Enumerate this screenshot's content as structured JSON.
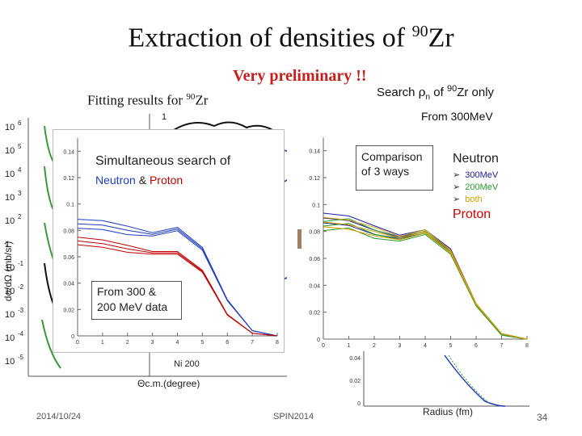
{
  "slide": {
    "title_main": "Extraction of densities of ",
    "title_sup": "90",
    "title_tail": "Zr",
    "preliminary": "Very preliminary !!",
    "fitting_prefix": "Fitting results for ",
    "fitting_sup": "90",
    "fitting_tail": "Zr",
    "search_prefix": "Search ",
    "search_rho": "ρ",
    "search_sub": "n",
    "search_mid": " of ",
    "search_sup": "90",
    "search_tail": "Zr only",
    "from300": "From 300MeV",
    "box_simultaneous_line1": "Simultaneous search of",
    "box_neutron": "Neutron",
    "box_amp": " & ",
    "box_proton": "Proton",
    "box_comparison": "Comparison of 3 ways",
    "box_from_data": "From 300 & 200 MeV data",
    "legend_neutron": "Neutron",
    "legend_items": [
      "300MeV",
      "200MeV",
      "both"
    ],
    "legend_proton": "Proton",
    "radius_label": "Radius (fm)",
    "date": "2014/10/24",
    "conference": "SPIN2014",
    "page_number": "34"
  },
  "axes": {
    "xsec_ylabel": "dσ/dΩ (mb/sr)",
    "xsec_xlabel": "Θc.m.(degree)",
    "density_yticks": [
      "0.14",
      "0.12",
      "0.1",
      "0.08",
      "0.06",
      "0.04",
      "0.02",
      "0"
    ],
    "density_xticks": [
      "0",
      "1",
      "2",
      "3",
      "4",
      "5",
      "6",
      "7",
      "8"
    ],
    "log_ticks": [
      "10",
      "10",
      "10",
      "10",
      "10",
      "1",
      "10",
      "10",
      "10",
      "10",
      "10"
    ],
    "log_exps": [
      "6",
      "5",
      "4",
      "3",
      "2",
      "",
      "-1",
      "-2",
      "-3",
      "-4",
      "-5"
    ],
    "ni_label": "Ni 200",
    "inset_yticks": [
      "0.04",
      "0.02",
      "0"
    ],
    "top_tick": "1"
  },
  "colors": {
    "title": "#111111",
    "preliminary": "#c81e1e",
    "neutron_blue": "#1f3fbf",
    "proton_red": "#c00000",
    "c300": "#1a1aa0",
    "c200": "#2a9a2a",
    "cboth": "#d4a000",
    "fit_green": "#3a9a3a"
  },
  "chart_data": [
    {
      "type": "line",
      "title": "",
      "xlabel": "",
      "ylabel": "",
      "series": [
        {
          "name": "Neutron",
          "x": [
            0,
            1,
            2,
            3,
            4,
            5,
            6,
            7,
            8
          ],
          "values": [
            0.085,
            0.084,
            0.08,
            0.077,
            0.081,
            0.066,
            0.027,
            0.004,
            0.0
          ]
        },
        {
          "name": "Proton",
          "x": [
            0,
            1,
            2,
            3,
            4,
            5,
            6,
            7,
            8
          ],
          "values": [
            0.072,
            0.07,
            0.066,
            0.063,
            0.063,
            0.049,
            0.016,
            0.002,
            0.0
          ]
        }
      ],
      "xlim": [
        0,
        8
      ],
      "ylim": [
        0,
        0.15
      ]
    },
    {
      "type": "line",
      "title": "",
      "xlabel": "Radius (fm)",
      "ylabel": "",
      "series": [
        {
          "name": "300MeV",
          "x": [
            0,
            1,
            2,
            3,
            4,
            5,
            6,
            7,
            8
          ],
          "values": [
            0.09,
            0.088,
            0.081,
            0.076,
            0.08,
            0.066,
            0.026,
            0.004,
            0.0
          ]
        },
        {
          "name": "200MeV",
          "x": [
            0,
            1,
            2,
            3,
            4,
            5,
            6,
            7,
            8
          ],
          "values": [
            0.084,
            0.086,
            0.078,
            0.074,
            0.079,
            0.064,
            0.025,
            0.003,
            0.0
          ]
        },
        {
          "name": "both",
          "x": [
            0,
            1,
            2,
            3,
            4,
            5,
            6,
            7,
            8
          ],
          "values": [
            0.087,
            0.085,
            0.08,
            0.075,
            0.08,
            0.065,
            0.026,
            0.004,
            0.0
          ]
        }
      ],
      "xlim": [
        0,
        8
      ],
      "ylim": [
        0,
        0.15
      ]
    }
  ]
}
